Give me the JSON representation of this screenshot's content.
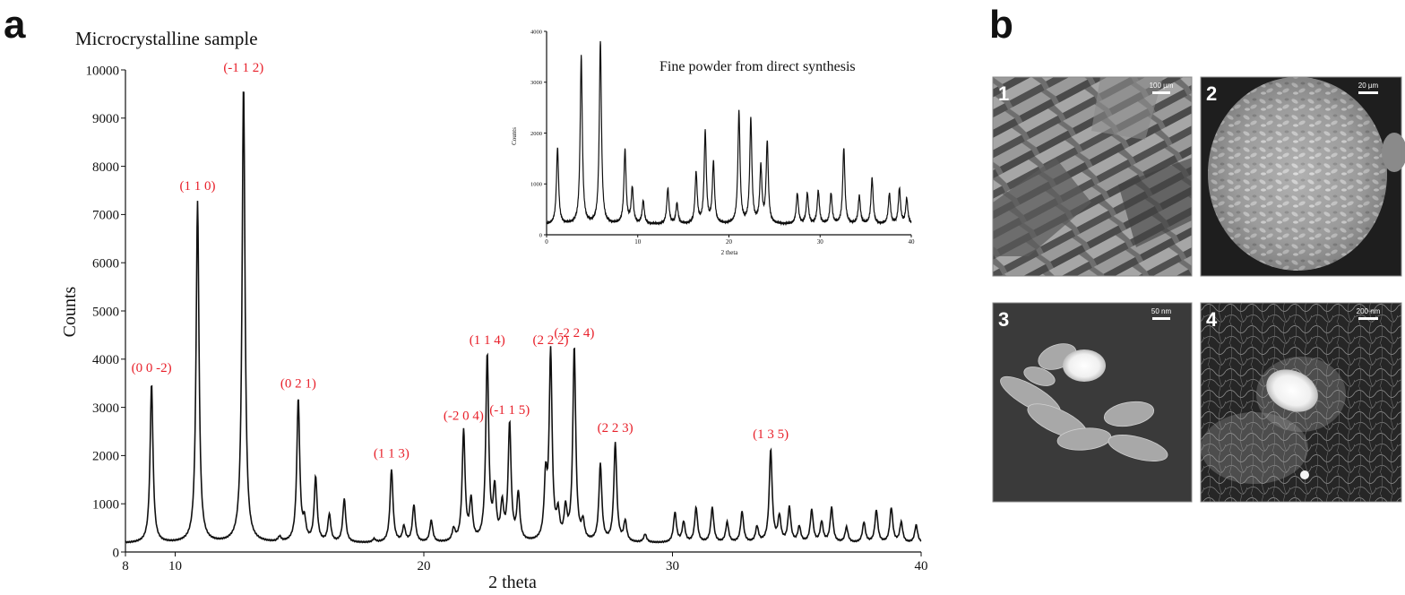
{
  "panels": {
    "a_letter": "a",
    "b_letter": "b"
  },
  "chart_data": [
    {
      "type": "line",
      "title": "Microcrystalline sample",
      "xlabel": "2 theta",
      "ylabel": "Counts",
      "xlim": [
        8,
        40
      ],
      "ylim": [
        0,
        10000
      ],
      "x_ticks": [
        "8",
        "10",
        "20",
        "30",
        "40"
      ],
      "y_ticks": [
        "0",
        "1000",
        "2000",
        "3000",
        "4000",
        "5000",
        "6000",
        "7000",
        "8000",
        "9000",
        "10000"
      ],
      "baseline": 180,
      "peaks": [
        {
          "x": 9.05,
          "y": 3480
        },
        {
          "x": 10.9,
          "y": 7250
        },
        {
          "x": 12.75,
          "y": 9700
        },
        {
          "x": 14.2,
          "y": 280
        },
        {
          "x": 14.95,
          "y": 3150
        },
        {
          "x": 15.2,
          "y": 560
        },
        {
          "x": 15.65,
          "y": 1520
        },
        {
          "x": 16.2,
          "y": 750
        },
        {
          "x": 16.8,
          "y": 1080
        },
        {
          "x": 18.0,
          "y": 250
        },
        {
          "x": 18.7,
          "y": 1700
        },
        {
          "x": 19.2,
          "y": 500
        },
        {
          "x": 19.6,
          "y": 950
        },
        {
          "x": 20.3,
          "y": 630
        },
        {
          "x": 21.2,
          "y": 430
        },
        {
          "x": 21.6,
          "y": 2480
        },
        {
          "x": 21.9,
          "y": 1000
        },
        {
          "x": 22.55,
          "y": 4050
        },
        {
          "x": 22.85,
          "y": 1200
        },
        {
          "x": 23.15,
          "y": 900
        },
        {
          "x": 23.45,
          "y": 2600
        },
        {
          "x": 23.8,
          "y": 1150
        },
        {
          "x": 24.9,
          "y": 1400
        },
        {
          "x": 25.1,
          "y": 4050
        },
        {
          "x": 25.4,
          "y": 700
        },
        {
          "x": 25.7,
          "y": 800
        },
        {
          "x": 26.05,
          "y": 4200
        },
        {
          "x": 26.4,
          "y": 550
        },
        {
          "x": 27.1,
          "y": 1780
        },
        {
          "x": 27.7,
          "y": 2230
        },
        {
          "x": 28.1,
          "y": 600
        },
        {
          "x": 28.9,
          "y": 350
        },
        {
          "x": 30.1,
          "y": 800
        },
        {
          "x": 30.45,
          "y": 600
        },
        {
          "x": 30.95,
          "y": 900
        },
        {
          "x": 31.6,
          "y": 900
        },
        {
          "x": 32.2,
          "y": 600
        },
        {
          "x": 32.8,
          "y": 820
        },
        {
          "x": 33.4,
          "y": 500
        },
        {
          "x": 33.95,
          "y": 2100
        },
        {
          "x": 34.3,
          "y": 700
        },
        {
          "x": 34.7,
          "y": 900
        },
        {
          "x": 35.1,
          "y": 500
        },
        {
          "x": 35.6,
          "y": 850
        },
        {
          "x": 36.0,
          "y": 600
        },
        {
          "x": 36.4,
          "y": 900
        },
        {
          "x": 37.0,
          "y": 500
        },
        {
          "x": 37.7,
          "y": 600
        },
        {
          "x": 38.2,
          "y": 850
        },
        {
          "x": 38.8,
          "y": 900
        },
        {
          "x": 39.2,
          "y": 600
        },
        {
          "x": 39.8,
          "y": 550
        }
      ],
      "annotations": [
        {
          "text": "(0 0 -2)",
          "x": 9.05,
          "y": 3480
        },
        {
          "text": "(1 1 0)",
          "x": 10.9,
          "y": 7250
        },
        {
          "text": "(-1 1 2)",
          "x": 12.75,
          "y": 9700
        },
        {
          "text": "(0 2 1)",
          "x": 14.95,
          "y": 3150
        },
        {
          "text": "(1 1 3)",
          "x": 18.7,
          "y": 1700
        },
        {
          "text": "(-2 0 4)",
          "x": 21.6,
          "y": 2480
        },
        {
          "text": "(1 1 4)",
          "x": 22.55,
          "y": 4050
        },
        {
          "text": "(-1 1 5)",
          "x": 23.45,
          "y": 2600
        },
        {
          "text": "(2 2 2)",
          "x": 25.1,
          "y": 4050
        },
        {
          "text": "(-2 2 4)",
          "x": 26.05,
          "y": 4200
        },
        {
          "text": "(2 2 3)",
          "x": 27.7,
          "y": 2230
        },
        {
          "text": "(1 3 5)",
          "x": 33.95,
          "y": 2100
        }
      ],
      "annotation_color": "#e8202a",
      "line_color": "#111111"
    },
    {
      "type": "line",
      "title": "Fine powder from direct synthesis",
      "xlabel": "2 theta",
      "ylabel": "Counts",
      "xlim": [
        0,
        40
      ],
      "ylim": [
        0,
        4000
      ],
      "x_ticks": [
        "0",
        "10",
        "20",
        "30",
        "40"
      ],
      "y_ticks": [
        "0",
        "1000",
        "2000",
        "3000",
        "4000"
      ],
      "baseline": 200,
      "peaks": [
        {
          "x": 1.2,
          "y": 1700
        },
        {
          "x": 3.8,
          "y": 3500
        },
        {
          "x": 5.9,
          "y": 3800
        },
        {
          "x": 8.6,
          "y": 1650
        },
        {
          "x": 9.4,
          "y": 900
        },
        {
          "x": 10.6,
          "y": 650
        },
        {
          "x": 13.3,
          "y": 900
        },
        {
          "x": 14.3,
          "y": 600
        },
        {
          "x": 16.4,
          "y": 1200
        },
        {
          "x": 17.4,
          "y": 2000
        },
        {
          "x": 18.3,
          "y": 1400
        },
        {
          "x": 21.1,
          "y": 2400
        },
        {
          "x": 22.4,
          "y": 2250
        },
        {
          "x": 23.5,
          "y": 1300
        },
        {
          "x": 24.2,
          "y": 1800
        },
        {
          "x": 27.5,
          "y": 800
        },
        {
          "x": 28.6,
          "y": 800
        },
        {
          "x": 29.8,
          "y": 850
        },
        {
          "x": 31.2,
          "y": 800
        },
        {
          "x": 32.6,
          "y": 1700
        },
        {
          "x": 34.3,
          "y": 750
        },
        {
          "x": 35.7,
          "y": 1100
        },
        {
          "x": 37.6,
          "y": 800
        },
        {
          "x": 38.7,
          "y": 900
        },
        {
          "x": 39.5,
          "y": 700
        }
      ],
      "line_color": "#111111"
    }
  ],
  "micrographs": [
    {
      "number": "1",
      "scale": "100 µm"
    },
    {
      "number": "2",
      "scale": "20 µm"
    },
    {
      "number": "3",
      "scale": "50 nm"
    },
    {
      "number": "4",
      "scale": "200 nm"
    }
  ]
}
